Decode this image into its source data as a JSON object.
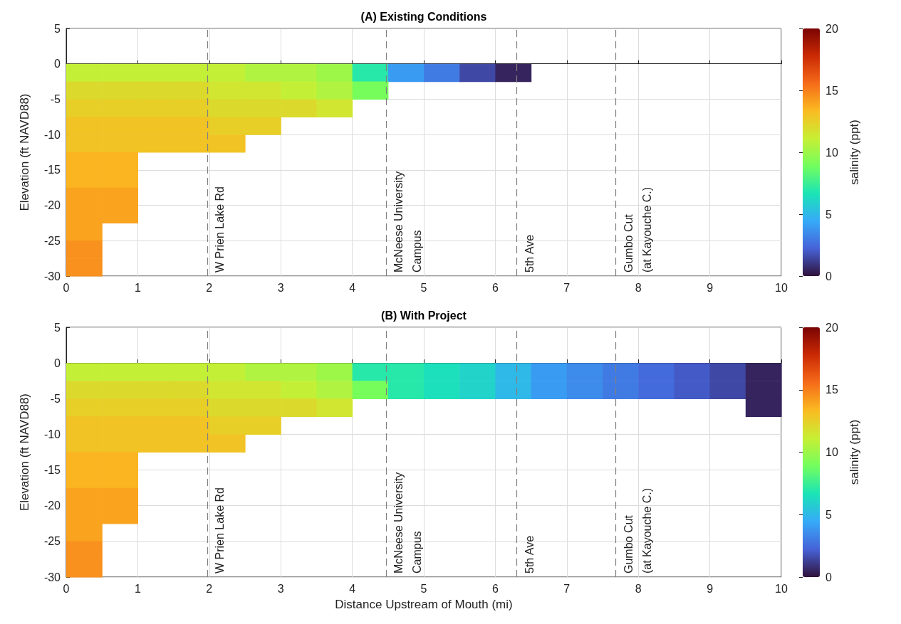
{
  "chart_data": [
    {
      "type": "heatmap",
      "title": "(A) Existing Conditions",
      "ylabel": "Elevation (ft NAVD88)",
      "clabel": "salinity (ppt)",
      "grid": true,
      "x": [
        0.25,
        0.75,
        1.25,
        1.75,
        2.25,
        2.75,
        3.25,
        3.75,
        4.25,
        4.75,
        5.25,
        5.75,
        6.25,
        6.75,
        7.25,
        7.75,
        8.25,
        8.75,
        9.25,
        9.75
      ],
      "y": [
        -1.25,
        -3.75,
        -6.25,
        -8.75,
        -11.25,
        -13.75,
        -16.25,
        -18.75,
        -21.25,
        -23.75,
        -26.25,
        -28.75
      ],
      "cells": [
        [
          11,
          11,
          11,
          11,
          11,
          10.5,
          10.5,
          10,
          7,
          4,
          3,
          1.5,
          0.5,
          null,
          null,
          null,
          null,
          null,
          null,
          null
        ],
        [
          12,
          12,
          12,
          12,
          11.5,
          11.5,
          11,
          10.5,
          9,
          null,
          null,
          null,
          null,
          null,
          null,
          null,
          null,
          null,
          null,
          null
        ],
        [
          12.5,
          12.5,
          12.5,
          12.5,
          12,
          12,
          12,
          11.5,
          null,
          null,
          null,
          null,
          null,
          null,
          null,
          null,
          null,
          null,
          null,
          null
        ],
        [
          13,
          13,
          13,
          13,
          12.5,
          12.5,
          null,
          null,
          null,
          null,
          null,
          null,
          null,
          null,
          null,
          null,
          null,
          null,
          null,
          null
        ],
        [
          13,
          13,
          13,
          13,
          13,
          null,
          null,
          null,
          null,
          null,
          null,
          null,
          null,
          null,
          null,
          null,
          null,
          null,
          null,
          null
        ],
        [
          13.5,
          13.5,
          null,
          null,
          null,
          null,
          null,
          null,
          null,
          null,
          null,
          null,
          null,
          null,
          null,
          null,
          null,
          null,
          null,
          null
        ],
        [
          13.5,
          13.5,
          null,
          null,
          null,
          null,
          null,
          null,
          null,
          null,
          null,
          null,
          null,
          null,
          null,
          null,
          null,
          null,
          null,
          null
        ],
        [
          14,
          14,
          null,
          null,
          null,
          null,
          null,
          null,
          null,
          null,
          null,
          null,
          null,
          null,
          null,
          null,
          null,
          null,
          null,
          null
        ],
        [
          14,
          14,
          null,
          null,
          null,
          null,
          null,
          null,
          null,
          null,
          null,
          null,
          null,
          null,
          null,
          null,
          null,
          null,
          null,
          null
        ],
        [
          14,
          null,
          null,
          null,
          null,
          null,
          null,
          null,
          null,
          null,
          null,
          null,
          null,
          null,
          null,
          null,
          null,
          null,
          null,
          null
        ],
        [
          14.5,
          null,
          null,
          null,
          null,
          null,
          null,
          null,
          null,
          null,
          null,
          null,
          null,
          null,
          null,
          null,
          null,
          null,
          null,
          null
        ],
        [
          14.5,
          null,
          null,
          null,
          null,
          null,
          null,
          null,
          null,
          null,
          null,
          null,
          null,
          null,
          null,
          null,
          null,
          null,
          null,
          null
        ]
      ],
      "xlim": [
        0,
        10
      ],
      "xticks": [
        0,
        1,
        2,
        3,
        4,
        5,
        6,
        7,
        8,
        9,
        10
      ],
      "ylim": [
        -30,
        5
      ],
      "yticks": [
        5,
        0,
        -5,
        -10,
        -15,
        -20,
        -25,
        -30
      ],
      "clim": [
        0,
        20
      ],
      "cticks": [
        0,
        5,
        10,
        15,
        20
      ],
      "ref_lines": [
        {
          "axis": "x",
          "value": 1.97,
          "label": "W Prien Lake Rd",
          "color": "#808080",
          "line_style": "dashed"
        },
        {
          "axis": "x",
          "value": 4.47,
          "label": "McNeese University\nCampus",
          "color": "#808080",
          "line_style": "dashed"
        },
        {
          "axis": "x",
          "value": 6.3,
          "label": "5th Ave",
          "color": "#808080",
          "line_style": "dashed"
        },
        {
          "axis": "x",
          "value": 7.68,
          "label": "Gumbo Cut\n(at Kayouche C.)",
          "color": "#808080",
          "line_style": "dashed"
        }
      ]
    },
    {
      "type": "heatmap",
      "title": "(B) With Project",
      "xlabel": "Distance Upstream of Mouth (mi)",
      "ylabel": "Elevation (ft NAVD88)",
      "clabel": "salinity (ppt)",
      "grid": true,
      "x": [
        0.25,
        0.75,
        1.25,
        1.75,
        2.25,
        2.75,
        3.25,
        3.75,
        4.25,
        4.75,
        5.25,
        5.75,
        6.25,
        6.75,
        7.25,
        7.75,
        8.25,
        8.75,
        9.25,
        9.75
      ],
      "y": [
        -1.25,
        -3.75,
        -6.25,
        -8.75,
        -11.25,
        -13.75,
        -16.25,
        -18.75,
        -21.25,
        -23.75,
        -26.25,
        -28.75
      ],
      "cells": [
        [
          11,
          11,
          11,
          11,
          11,
          10.5,
          10.5,
          10,
          7,
          7,
          6.5,
          6,
          5,
          4,
          3.5,
          3,
          2.5,
          2,
          1.5,
          0.5
        ],
        [
          12,
          12,
          12,
          12,
          11.5,
          11.5,
          11,
          10.5,
          9,
          7,
          6.5,
          6,
          5,
          4,
          3.5,
          3,
          2.5,
          2,
          1.5,
          0.5
        ],
        [
          12.5,
          12.5,
          12.5,
          12.5,
          12,
          12,
          12,
          11.5,
          null,
          null,
          null,
          null,
          null,
          null,
          null,
          null,
          null,
          null,
          null,
          0.5
        ],
        [
          13,
          13,
          13,
          13,
          12.5,
          12.5,
          null,
          null,
          null,
          null,
          null,
          null,
          null,
          null,
          null,
          null,
          null,
          null,
          null,
          null
        ],
        [
          13,
          13,
          13,
          13,
          13,
          null,
          null,
          null,
          null,
          null,
          null,
          null,
          null,
          null,
          null,
          null,
          null,
          null,
          null,
          null
        ],
        [
          13.5,
          13.5,
          null,
          null,
          null,
          null,
          null,
          null,
          null,
          null,
          null,
          null,
          null,
          null,
          null,
          null,
          null,
          null,
          null,
          null
        ],
        [
          13.5,
          13.5,
          null,
          null,
          null,
          null,
          null,
          null,
          null,
          null,
          null,
          null,
          null,
          null,
          null,
          null,
          null,
          null,
          null,
          null
        ],
        [
          14,
          14,
          null,
          null,
          null,
          null,
          null,
          null,
          null,
          null,
          null,
          null,
          null,
          null,
          null,
          null,
          null,
          null,
          null,
          null
        ],
        [
          14,
          14,
          null,
          null,
          null,
          null,
          null,
          null,
          null,
          null,
          null,
          null,
          null,
          null,
          null,
          null,
          null,
          null,
          null,
          null
        ],
        [
          14,
          null,
          null,
          null,
          null,
          null,
          null,
          null,
          null,
          null,
          null,
          null,
          null,
          null,
          null,
          null,
          null,
          null,
          null,
          null
        ],
        [
          14.5,
          null,
          null,
          null,
          null,
          null,
          null,
          null,
          null,
          null,
          null,
          null,
          null,
          null,
          null,
          null,
          null,
          null,
          null,
          null
        ],
        [
          14.5,
          null,
          null,
          null,
          null,
          null,
          null,
          null,
          null,
          null,
          null,
          null,
          null,
          null,
          null,
          null,
          null,
          null,
          null,
          null
        ]
      ],
      "xlim": [
        0,
        10
      ],
      "xticks": [
        0,
        1,
        2,
        3,
        4,
        5,
        6,
        7,
        8,
        9,
        10
      ],
      "ylim": [
        -30,
        5
      ],
      "yticks": [
        5,
        0,
        -5,
        -10,
        -15,
        -20,
        -25,
        -30
      ],
      "clim": [
        0,
        20
      ],
      "cticks": [
        0,
        5,
        10,
        15,
        20
      ],
      "ref_lines": [
        {
          "axis": "x",
          "value": 1.97,
          "label": "W Prien Lake Rd",
          "color": "#808080",
          "line_style": "dashed"
        },
        {
          "axis": "x",
          "value": 4.47,
          "label": "McNeese University\nCampus",
          "color": "#808080",
          "line_style": "dashed"
        },
        {
          "axis": "x",
          "value": 6.3,
          "label": "5th Ave",
          "color": "#808080",
          "line_style": "dashed"
        },
        {
          "axis": "x",
          "value": 7.68,
          "label": "Gumbo Cut\n(at Kayouche C.)",
          "color": "#808080",
          "line_style": "dashed"
        }
      ]
    }
  ]
}
